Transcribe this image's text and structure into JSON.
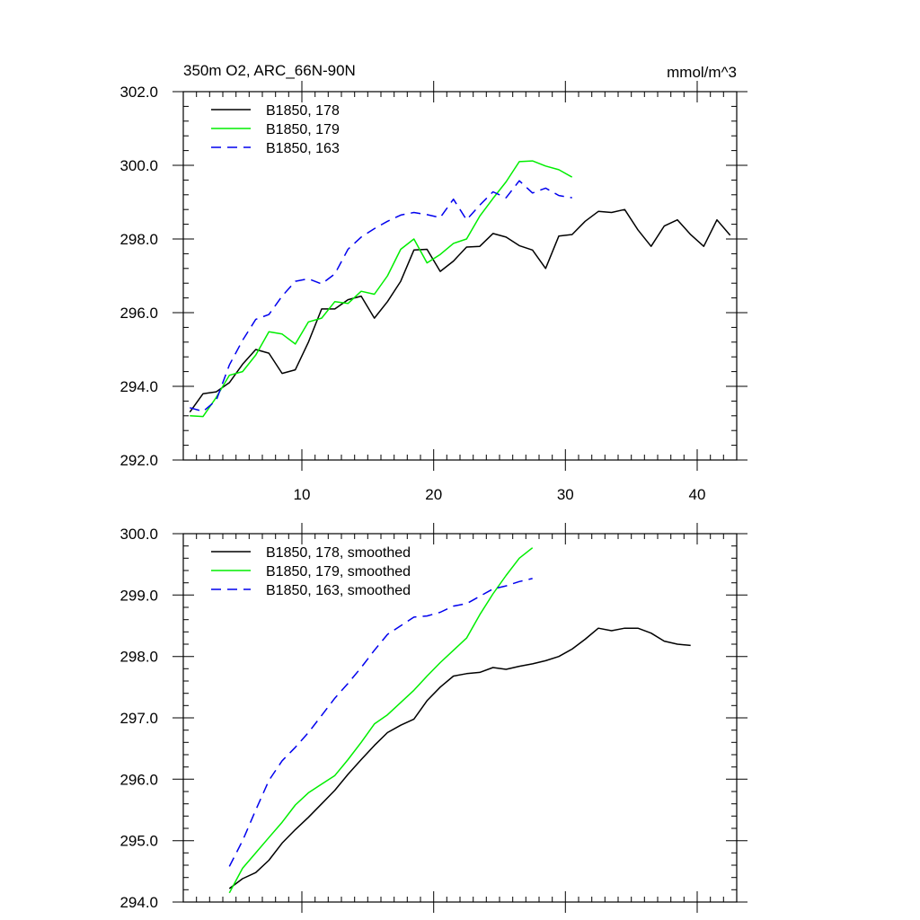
{
  "chart_data": [
    {
      "type": "line",
      "title_left": "350m O2, ARC_66N-90N",
      "title_right": "mmol/m^3",
      "xlim": [
        1,
        43
      ],
      "ylim": [
        292,
        302
      ],
      "xticks": [
        10,
        20,
        30,
        40
      ],
      "xtick_labels": [
        "10",
        "20",
        "30",
        "40"
      ],
      "yticks": [
        292,
        294,
        296,
        298,
        300,
        302
      ],
      "ytick_labels": [
        "292.0",
        "294.0",
        "296.0",
        "298.0",
        "300.0",
        "302.0"
      ],
      "series": [
        {
          "name": "B1850, 178",
          "color": "#000000",
          "dash": "solid",
          "x": [
            1.5,
            2.5,
            3.5,
            4.5,
            5.5,
            6.5,
            7.5,
            8.5,
            9.5,
            10.5,
            11.5,
            12.5,
            13.5,
            14.5,
            15.5,
            16.5,
            17.5,
            18.5,
            19.5,
            20.5,
            21.5,
            22.5,
            23.5,
            24.5,
            25.5,
            26.5,
            27.5,
            28.5,
            29.5,
            30.5,
            31.5,
            32.5,
            33.5,
            34.5,
            35.5,
            36.5,
            37.5,
            38.5,
            39.5,
            40.5,
            41.5,
            42.5
          ],
          "y": [
            293.3,
            293.8,
            293.85,
            294.1,
            294.6,
            295.0,
            294.9,
            294.35,
            294.45,
            295.2,
            296.1,
            296.1,
            296.35,
            296.45,
            295.85,
            296.3,
            296.85,
            297.7,
            297.72,
            297.12,
            297.4,
            297.78,
            297.8,
            298.15,
            298.05,
            297.82,
            297.7,
            297.2,
            298.08,
            298.12,
            298.48,
            298.75,
            298.72,
            298.8,
            298.25,
            297.8,
            298.35,
            298.52,
            298.12,
            297.8,
            298.52,
            298.1
          ]
        },
        {
          "name": "B1850, 179",
          "color": "#00ee00",
          "dash": "solid",
          "x": [
            1.5,
            2.5,
            3.5,
            4.5,
            5.5,
            6.5,
            7.5,
            8.5,
            9.5,
            10.5,
            11.5,
            12.5,
            13.5,
            14.5,
            15.5,
            16.5,
            17.5,
            18.5,
            19.5,
            20.5,
            21.5,
            22.5,
            23.5,
            24.5,
            25.5,
            26.5,
            27.5,
            28.5,
            29.5,
            30.5
          ],
          "y": [
            293.2,
            293.18,
            293.7,
            294.3,
            294.4,
            294.85,
            295.48,
            295.42,
            295.15,
            295.75,
            295.85,
            296.3,
            296.25,
            296.58,
            296.5,
            297.0,
            297.72,
            298.0,
            297.35,
            297.58,
            297.88,
            298.0,
            298.62,
            299.1,
            299.55,
            300.1,
            300.12,
            299.98,
            299.88,
            299.68
          ]
        },
        {
          "name": "B1850, 163",
          "color": "#0000ee",
          "dash": "dashed",
          "x": [
            1.5,
            2.5,
            3.5,
            4.5,
            5.5,
            6.5,
            7.5,
            8.5,
            9.5,
            10.5,
            11.5,
            12.5,
            13.5,
            14.5,
            15.5,
            16.5,
            17.5,
            18.5,
            19.5,
            20.5,
            21.5,
            22.5,
            23.5,
            24.5,
            25.5,
            26.5,
            27.5,
            28.5,
            29.5,
            30.5
          ],
          "y": [
            293.42,
            293.32,
            293.62,
            294.58,
            295.25,
            295.82,
            295.95,
            296.45,
            296.85,
            296.92,
            296.78,
            297.05,
            297.72,
            298.05,
            298.28,
            298.48,
            298.65,
            298.72,
            298.66,
            298.58,
            299.08,
            298.52,
            298.92,
            299.28,
            299.12,
            299.58,
            299.25,
            299.38,
            299.18,
            299.12
          ]
        }
      ]
    },
    {
      "type": "line",
      "xlim": [
        1,
        43
      ],
      "ylim": [
        294,
        300
      ],
      "xticks": [
        10,
        20,
        30,
        40
      ],
      "xtick_labels": [],
      "yticks": [
        294,
        295,
        296,
        297,
        298,
        299,
        300
      ],
      "ytick_labels": [
        "294.0",
        "295.0",
        "296.0",
        "297.0",
        "298.0",
        "299.0",
        "300.0"
      ],
      "series": [
        {
          "name": "B1850, 178, smoothed",
          "color": "#000000",
          "dash": "solid",
          "x": [
            4.5,
            5.5,
            6.5,
            7.5,
            8.5,
            9.5,
            10.5,
            11.5,
            12.5,
            13.5,
            14.5,
            15.5,
            16.5,
            17.5,
            18.5,
            19.5,
            20.5,
            21.5,
            22.5,
            23.5,
            24.5,
            25.5,
            26.5,
            27.5,
            28.5,
            29.5,
            30.5,
            31.5,
            32.5,
            33.5,
            34.5,
            35.5,
            36.5,
            37.5,
            38.5,
            39.5
          ],
          "y": [
            294.22,
            294.38,
            294.48,
            294.68,
            294.96,
            295.18,
            295.38,
            295.6,
            295.82,
            296.08,
            296.32,
            296.55,
            296.76,
            296.88,
            296.98,
            297.28,
            297.5,
            297.68,
            297.72,
            297.74,
            297.82,
            297.79,
            297.84,
            297.88,
            297.93,
            298.0,
            298.12,
            298.28,
            298.46,
            298.42,
            298.46,
            298.46,
            298.38,
            298.25,
            298.2,
            298.18
          ]
        },
        {
          "name": "B1850, 179, smoothed",
          "color": "#00ee00",
          "dash": "solid",
          "x": [
            4.5,
            5.5,
            6.5,
            7.5,
            8.5,
            9.5,
            10.5,
            11.5,
            12.5,
            13.5,
            14.5,
            15.5,
            16.5,
            17.5,
            18.5,
            19.5,
            20.5,
            21.5,
            22.5,
            23.5,
            24.5,
            25.5,
            26.5,
            27.5
          ],
          "y": [
            294.15,
            294.55,
            294.8,
            295.05,
            295.3,
            295.58,
            295.78,
            295.92,
            296.06,
            296.32,
            296.6,
            296.9,
            297.05,
            297.25,
            297.45,
            297.68,
            297.9,
            298.1,
            298.3,
            298.68,
            299.02,
            299.32,
            299.6,
            299.77
          ]
        },
        {
          "name": "B1850, 163, smoothed",
          "color": "#0000ee",
          "dash": "dashed",
          "x": [
            4.5,
            5.5,
            6.5,
            7.5,
            8.5,
            9.5,
            10.5,
            11.5,
            12.5,
            13.5,
            14.5,
            15.5,
            16.5,
            17.5,
            18.5,
            19.5,
            20.5,
            21.5,
            22.5,
            23.5,
            24.5,
            25.5,
            26.5,
            27.5
          ],
          "y": [
            294.58,
            295.0,
            295.5,
            295.98,
            296.3,
            296.52,
            296.76,
            297.04,
            297.32,
            297.56,
            297.82,
            298.1,
            298.36,
            298.5,
            298.64,
            298.66,
            298.72,
            298.82,
            298.86,
            298.98,
            299.1,
            299.15,
            299.22,
            299.27
          ]
        }
      ]
    }
  ]
}
